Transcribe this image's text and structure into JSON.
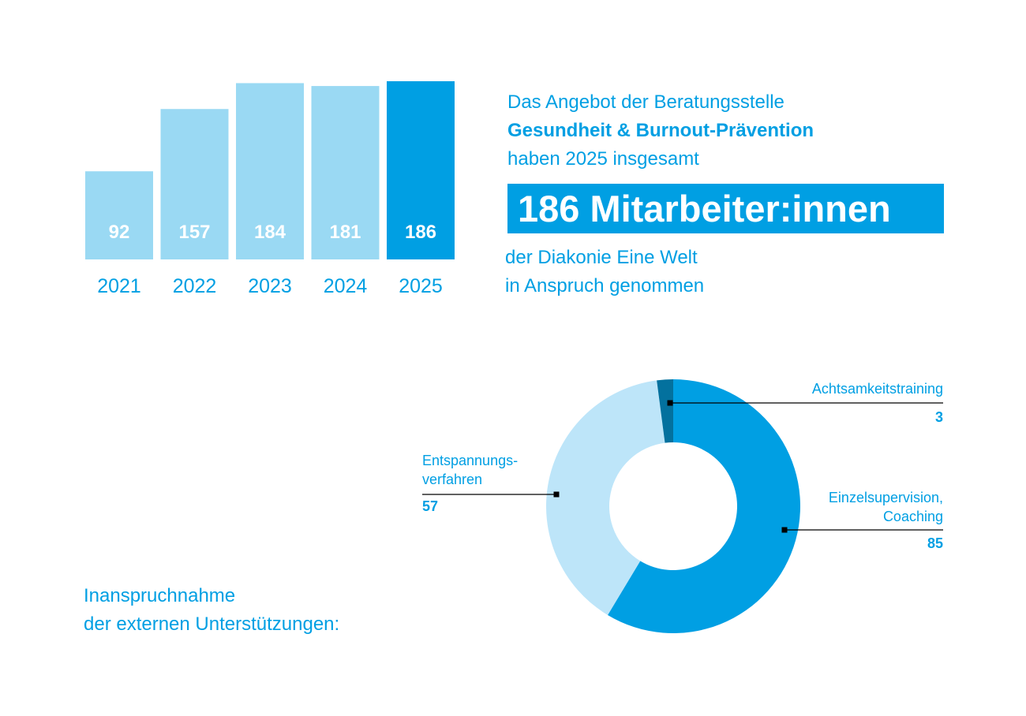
{
  "colors": {
    "accent": "#009fe3",
    "light_bar": "#9ad9f3",
    "donut_light": "#bde5f9",
    "donut_dark": "#03719e",
    "white": "#ffffff"
  },
  "headline": {
    "line1": "Das Angebot der Beratungsstelle",
    "line2": "Gesundheit & Burnout-Prävention",
    "line3": "haben 2025 insgesamt",
    "highlight": "186 Mitarbeiter:innen",
    "line4": "der Diakonie Eine Welt",
    "line5": "in Anspruch genommen"
  },
  "donut_title": {
    "line1": "Inanspruchnahme",
    "line2": "der externen Unterstützungen:"
  },
  "chart_data": [
    {
      "type": "bar",
      "categories": [
        "2021",
        "2022",
        "2023",
        "2024",
        "2025"
      ],
      "values": [
        92,
        157,
        184,
        181,
        186
      ],
      "value_labels": [
        "92",
        "157",
        "184",
        "181",
        "186"
      ],
      "highlighted_category": "2025",
      "title": "",
      "xlabel": "",
      "ylabel": "",
      "grid": false
    },
    {
      "type": "pie",
      "style": "donut",
      "labels": [
        "Achtsamkeitstraining",
        "Einzelsupervision, Coaching",
        "Entspannungsverfahren"
      ],
      "label_lines": [
        [
          "Achtsamkeitstraining"
        ],
        [
          "Einzelsupervision,",
          "Coaching"
        ],
        [
          "Entspannungs-",
          "verfahren"
        ]
      ],
      "values": [
        3,
        85,
        57
      ],
      "value_labels": [
        "3",
        "85",
        "57"
      ],
      "colors": [
        "#03719e",
        "#009fe3",
        "#bde5f9"
      ],
      "title": ""
    }
  ]
}
